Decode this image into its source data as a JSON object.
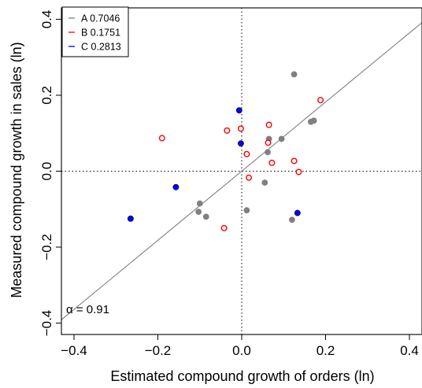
{
  "chart_data": {
    "type": "scatter",
    "title": "",
    "xlabel": "Estimated compound growth of orders (ln)",
    "ylabel": "Measured compound growth in sales (ln)",
    "xlim": [
      -0.43,
      0.43
    ],
    "ylim": [
      -0.43,
      0.43
    ],
    "x_ticks": [
      -0.4,
      -0.2,
      0.0,
      0.2,
      0.4
    ],
    "y_ticks": [
      -0.4,
      -0.2,
      0.0,
      0.2,
      0.4
    ],
    "x_tick_labels": [
      "−0.4",
      "−0.2",
      "0.0",
      "0.2",
      "0.4"
    ],
    "y_tick_labels": [
      "−0.4",
      "−0.2",
      "0.0",
      "0.2",
      "0.4"
    ],
    "grid": false,
    "reference_lines": {
      "horizontal_zero": "dotted",
      "vertical_zero": "dotted",
      "fit_line": {
        "intercept": 0.0,
        "slope": 0.91,
        "color": "#808080"
      }
    },
    "annotation": "α = 0.91",
    "legend": {
      "position": "top-left",
      "entries": [
        {
          "label": "A 0.7046",
          "color": "#808080"
        },
        {
          "label": "B 0.1751",
          "color": "#ff0000"
        },
        {
          "label": "C 0.2813",
          "color": "#0000ff"
        }
      ]
    },
    "series": [
      {
        "name": "A",
        "marker": "filled-circle",
        "color": "#808080",
        "points": [
          [
            0.125,
            0.255
          ],
          [
            0.165,
            0.13
          ],
          [
            0.172,
            0.133
          ],
          [
            0.095,
            0.085
          ],
          [
            0.065,
            0.085
          ],
          [
            0.062,
            0.05
          ],
          [
            0.055,
            -0.03
          ],
          [
            0.012,
            -0.103
          ],
          [
            -0.1,
            -0.085
          ],
          [
            -0.103,
            -0.107
          ],
          [
            -0.085,
            -0.12
          ],
          [
            0.12,
            -0.128
          ]
        ]
      },
      {
        "name": "B",
        "marker": "open-circle",
        "color": "#ff0000",
        "points": [
          [
            0.188,
            0.187
          ],
          [
            0.065,
            0.122
          ],
          [
            -0.002,
            0.112
          ],
          [
            -0.035,
            0.107
          ],
          [
            0.063,
            0.075
          ],
          [
            -0.19,
            0.087
          ],
          [
            0.012,
            0.045
          ],
          [
            0.072,
            0.022
          ],
          [
            0.125,
            0.027
          ],
          [
            0.136,
            -0.002
          ],
          [
            0.017,
            -0.017
          ],
          [
            -0.042,
            -0.15
          ]
        ]
      },
      {
        "name": "C",
        "marker": "filled-circle",
        "color": "#0000ff",
        "edge_color": "#000000",
        "points": [
          [
            -0.006,
            0.16
          ],
          [
            -0.002,
            0.073
          ],
          [
            -0.157,
            -0.042
          ],
          [
            -0.265,
            -0.125
          ],
          [
            0.133,
            -0.11
          ]
        ]
      }
    ]
  }
}
